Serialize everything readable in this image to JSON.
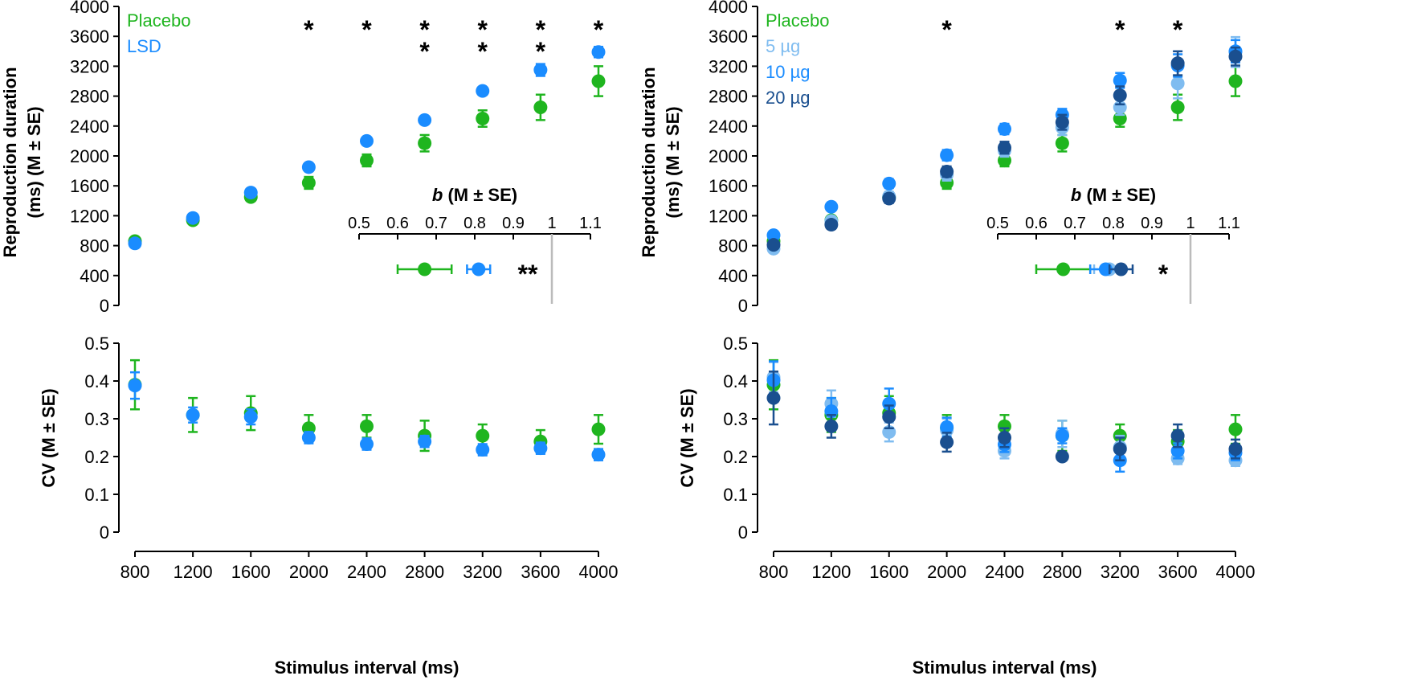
{
  "colors": {
    "placebo": "#1fb51f",
    "lsd": "#1a8cff",
    "dose5": "#7fbcf0",
    "dose10": "#1a8cff",
    "dose20": "#1a4f8f",
    "axis": "#000000",
    "reference_line": "#bbbbbb"
  },
  "chart_data": [
    {
      "id": "top-left",
      "type": "scatter",
      "ylabel_line1": "Reproduction duration",
      "ylabel_line2": "(ms) (M ± SE)",
      "x": [
        800,
        1200,
        1600,
        2000,
        2400,
        2800,
        3200,
        3600,
        4000
      ],
      "xlim": [
        800,
        4000
      ],
      "ylim": [
        0,
        4000
      ],
      "yticks": [
        "0",
        "400",
        "800",
        "1200",
        "1600",
        "2000",
        "2400",
        "2800",
        "3200",
        "3600",
        "4000"
      ],
      "legend": [
        "Placebo",
        "LSD"
      ],
      "legend_position": "top-left",
      "series": [
        {
          "name": "Placebo",
          "color_key": "placebo",
          "y": [
            860,
            1140,
            1450,
            1640,
            1940,
            2170,
            2500,
            2650,
            3000
          ],
          "se": [
            30,
            40,
            40,
            80,
            80,
            110,
            110,
            170,
            200
          ]
        },
        {
          "name": "LSD",
          "color_key": "lsd",
          "y": [
            830,
            1170,
            1510,
            1850,
            2200,
            2480,
            2870,
            3150,
            3390
          ],
          "se": [
            30,
            35,
            40,
            40,
            40,
            50,
            50,
            80,
            70
          ]
        }
      ],
      "significance": [
        {
          "x": 2000,
          "stars": [
            "*"
          ]
        },
        {
          "x": 2400,
          "stars": [
            "*"
          ]
        },
        {
          "x": 2800,
          "stars": [
            "*",
            "*"
          ]
        },
        {
          "x": 3200,
          "stars": [
            "*",
            "*"
          ]
        },
        {
          "x": 3600,
          "stars": [
            "*",
            "*"
          ]
        },
        {
          "x": 4000,
          "stars": [
            "*"
          ]
        }
      ],
      "inset": {
        "title_var": "b",
        "title_rest": " (M ± SE)",
        "xlim": [
          0.5,
          1.1
        ],
        "xticks": [
          "0.5",
          "0.6",
          "0.7",
          "0.8",
          "0.9",
          "1",
          "1.1"
        ],
        "reference": 1,
        "significance": "**",
        "points": [
          {
            "color_key": "placebo",
            "value": 0.67,
            "err_low": 0.6,
            "err_high": 0.74
          },
          {
            "color_key": "lsd",
            "value": 0.81,
            "err_low": 0.78,
            "err_high": 0.84
          }
        ]
      }
    },
    {
      "id": "top-right",
      "type": "scatter",
      "ylabel_line1": "Reproduction duration",
      "ylabel_line2": "(ms) (M ± SE)",
      "x": [
        800,
        1200,
        1600,
        2000,
        2400,
        2800,
        3200,
        3600,
        4000
      ],
      "xlim": [
        800,
        4000
      ],
      "ylim": [
        0,
        4000
      ],
      "yticks": [
        "0",
        "400",
        "800",
        "1200",
        "1600",
        "2000",
        "2400",
        "2800",
        "3200",
        "3600",
        "4000"
      ],
      "legend": [
        "Placebo",
        "5 µg",
        "10 µg",
        "20 µg"
      ],
      "legend_position": "top-left",
      "series": [
        {
          "name": "Placebo",
          "color_key": "placebo",
          "y": [
            860,
            1140,
            1450,
            1640,
            1940,
            2170,
            2500,
            2650,
            3000
          ],
          "se": [
            30,
            40,
            40,
            80,
            80,
            110,
            110,
            170,
            200
          ]
        },
        {
          "name": "5 µg",
          "color_key": "dose5",
          "y": [
            760,
            1130,
            1460,
            1750,
            2070,
            2380,
            2650,
            2970,
            3390
          ],
          "se": [
            40,
            50,
            60,
            80,
            80,
            100,
            100,
            200,
            200
          ]
        },
        {
          "name": "10 µg",
          "color_key": "dose10",
          "y": [
            940,
            1320,
            1630,
            2010,
            2360,
            2550,
            3010,
            3210,
            3400
          ],
          "se": [
            40,
            50,
            60,
            70,
            70,
            80,
            100,
            150,
            150
          ]
        },
        {
          "name": "20 µg",
          "color_key": "dose20",
          "y": [
            810,
            1080,
            1430,
            1790,
            2110,
            2450,
            2810,
            3240,
            3330
          ],
          "se": [
            40,
            50,
            60,
            70,
            80,
            100,
            120,
            160,
            120
          ]
        }
      ],
      "significance": [
        {
          "x": 2000,
          "stars": [
            "*"
          ]
        },
        {
          "x": 3200,
          "stars": [
            "*"
          ]
        },
        {
          "x": 3600,
          "stars": [
            "*"
          ]
        }
      ],
      "inset": {
        "title_var": "b",
        "title_rest": " (M ± SE)",
        "xlim": [
          0.5,
          1.1
        ],
        "xticks": [
          "0.5",
          "0.6",
          "0.7",
          "0.8",
          "0.9",
          "1",
          "1.1"
        ],
        "reference": 1,
        "significance": "*",
        "points": [
          {
            "color_key": "placebo",
            "value": 0.67,
            "err_low": 0.6,
            "err_high": 0.74
          },
          {
            "color_key": "dose5",
            "value": 0.79,
            "err_low": 0.75,
            "err_high": 0.82
          },
          {
            "color_key": "dose10",
            "value": 0.78,
            "err_low": 0.74,
            "err_high": 0.82
          },
          {
            "color_key": "dose20",
            "value": 0.82,
            "err_low": 0.79,
            "err_high": 0.85
          }
        ]
      }
    },
    {
      "id": "bottom-left",
      "type": "scatter",
      "ylabel": "CV (M ± SE)",
      "xlabel": "Stimulus interval (ms)",
      "x": [
        800,
        1200,
        1600,
        2000,
        2400,
        2800,
        3200,
        3600,
        4000
      ],
      "xticks": [
        "800",
        "1200",
        "1600",
        "2000",
        "2400",
        "2800",
        "3200",
        "3600",
        "4000"
      ],
      "xlim": [
        800,
        4000
      ],
      "ylim": [
        0,
        0.5
      ],
      "yticks": [
        "0",
        "0.1",
        "0.2",
        "0.3",
        "0.4",
        "0.5"
      ],
      "series": [
        {
          "name": "Placebo",
          "color_key": "placebo",
          "y": [
            0.39,
            0.31,
            0.315,
            0.275,
            0.28,
            0.255,
            0.255,
            0.24,
            0.272
          ],
          "se": [
            0.065,
            0.045,
            0.045,
            0.035,
            0.03,
            0.04,
            0.03,
            0.03,
            0.038
          ]
        },
        {
          "name": "LSD",
          "color_key": "lsd",
          "y": [
            0.388,
            0.31,
            0.305,
            0.25,
            0.233,
            0.24,
            0.218,
            0.222,
            0.205
          ],
          "se": [
            0.035,
            0.02,
            0.02,
            0.015,
            0.015,
            0.015,
            0.015,
            0.015,
            0.015
          ]
        }
      ]
    },
    {
      "id": "bottom-right",
      "type": "scatter",
      "ylabel": "CV (M ± SE)",
      "xlabel": "Stimulus interval (ms)",
      "x": [
        800,
        1200,
        1600,
        2000,
        2400,
        2800,
        3200,
        3600,
        4000
      ],
      "xticks": [
        "800",
        "1200",
        "1600",
        "2000",
        "2400",
        "2800",
        "3200",
        "3600",
        "4000"
      ],
      "xlim": [
        800,
        4000
      ],
      "ylim": [
        0,
        0.5
      ],
      "yticks": [
        "0",
        "0.1",
        "0.2",
        "0.3",
        "0.4",
        "0.5"
      ],
      "series": [
        {
          "name": "Placebo",
          "color_key": "placebo",
          "y": [
            0.39,
            0.31,
            0.315,
            0.275,
            0.28,
            0.255,
            0.255,
            0.24,
            0.272
          ],
          "se": [
            0.065,
            0.045,
            0.045,
            0.035,
            0.03,
            0.04,
            0.03,
            0.03,
            0.038
          ]
        },
        {
          "name": "5 µg",
          "color_key": "dose5",
          "y": [
            0.41,
            0.34,
            0.265,
            0.27,
            0.215,
            0.26,
            0.225,
            0.195,
            0.19
          ],
          "se": [
            0.04,
            0.035,
            0.025,
            0.03,
            0.02,
            0.035,
            0.03,
            0.015,
            0.015
          ]
        },
        {
          "name": "10 µg",
          "color_key": "dose10",
          "y": [
            0.402,
            0.32,
            0.34,
            0.278,
            0.232,
            0.255,
            0.19,
            0.215,
            0.21
          ],
          "se": [
            0.05,
            0.035,
            0.04,
            0.025,
            0.02,
            0.02,
            0.03,
            0.02,
            0.02
          ]
        },
        {
          "name": "20 µg",
          "color_key": "dose20",
          "y": [
            0.355,
            0.28,
            0.305,
            0.238,
            0.25,
            0.2,
            0.22,
            0.255,
            0.22
          ],
          "se": [
            0.07,
            0.03,
            0.03,
            0.025,
            0.025,
            0.01,
            0.03,
            0.03,
            0.025
          ]
        }
      ]
    }
  ]
}
